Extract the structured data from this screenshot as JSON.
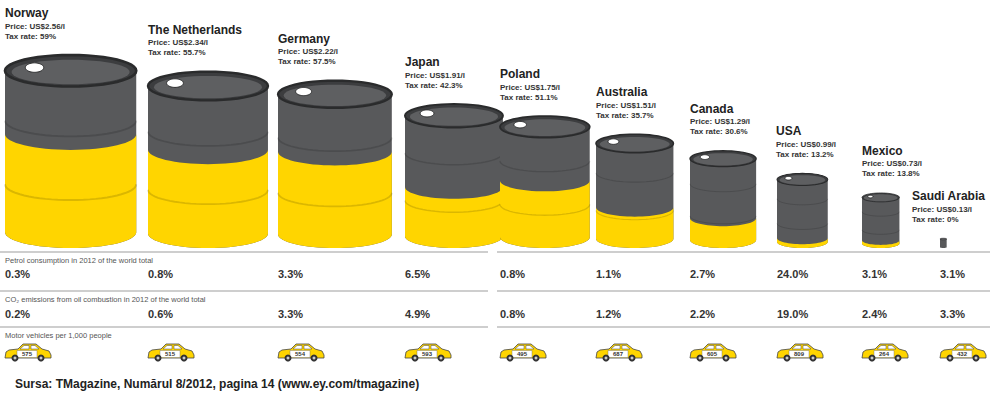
{
  "chart_data": {
    "type": "barrel",
    "categories": [
      "Norway",
      "The Netherlands",
      "Germany",
      "Japan",
      "Poland",
      "Australia",
      "Canada",
      "USA",
      "Mexico",
      "Saudi Arabia"
    ],
    "series": [
      {
        "type": "barrel",
        "color": "#58595b",
        "values": [
          2.56,
          2.34,
          2.22,
          1.91,
          1.75,
          1.51,
          1.29,
          0.99,
          0.73,
          0.13
        ],
        "value_labels": [
          "Price: US$2.56/l",
          "Price: US$2.34/l",
          "Price: US$2.22/l",
          "Price: US$1.91/l",
          "Price: US$1.75/l",
          "Price: US$1.51/l",
          "Price: US$1.29/l",
          "Price: US$0.99/l",
          "Price: US$0.73/l",
          "Price: US$0.13/l"
        ]
      },
      {
        "type": "barrel_fill",
        "color": "#ffd500",
        "values": [
          59,
          55.7,
          57.5,
          42.3,
          51.1,
          35.7,
          30.6,
          13.2,
          13.8,
          0
        ],
        "value_labels": [
          "Tax rate: 59%",
          "Tax rate: 55.7%",
          "Tax rate: 57.5%",
          "Tax rate: 42.3%",
          "Tax rate: 51.1%",
          "Tax rate: 35.7%",
          "Tax rate: 30.6%",
          "Tax rate: 13.2%",
          "Tax rate: 13.8%",
          "Tax rate: 0%"
        ]
      },
      {
        "type": "table_row",
        "name": "Petrol consumption in 2012 of the world total",
        "values": [
          0.3,
          0.8,
          3.3,
          6.5,
          0.8,
          1.1,
          2.7,
          24.0,
          3.1,
          3.1
        ],
        "value_labels": [
          "0.3%",
          "0.8%",
          "3.3%",
          "6.5%",
          "0.8%",
          "1.1%",
          "2.7%",
          "24.0%",
          "3.1%",
          "3.1%"
        ]
      },
      {
        "type": "table_row",
        "name": "CO₂ emissions from oil combustion in 2012 of the world total",
        "values": [
          0.2,
          0.6,
          3.3,
          4.9,
          0.8,
          1.2,
          2.2,
          19.0,
          2.4,
          3.3
        ],
        "value_labels": [
          "0.2%",
          "0.6%",
          "3.3%",
          "4.9%",
          "0.8%",
          "1.2%",
          "2.2%",
          "19.0%",
          "2.4%",
          "3.3%"
        ]
      },
      {
        "type": "pictogram",
        "name": "Motor vehicles per 1,000 people",
        "color": "#ffd500",
        "values": [
          575,
          515,
          554,
          593,
          495,
          687,
          605,
          809,
          264,
          432
        ]
      }
    ],
    "data_labels": true,
    "annotations": [
      "Sursa: TMagazine, Numărul 8/2012, pagina 14 (www.ey.com/tmagazine)"
    ]
  }
}
